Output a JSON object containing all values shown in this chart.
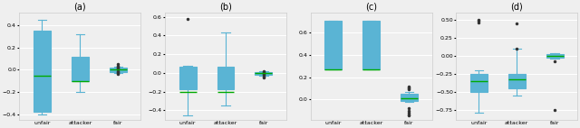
{
  "panels": [
    {
      "title": "(a)",
      "categories": [
        "unfair",
        "attacker",
        "fair"
      ],
      "boxes": [
        {
          "q1": -0.38,
          "median": -0.05,
          "q3": 0.35,
          "whislo": -0.4,
          "whishi": 0.45,
          "fliers": []
        },
        {
          "q1": -0.1,
          "median": -0.1,
          "q3": 0.12,
          "whislo": -0.2,
          "whishi": 0.32,
          "fliers": []
        },
        {
          "q1": -0.02,
          "median": 0.0,
          "q3": 0.02,
          "whislo": -0.03,
          "whishi": 0.03,
          "fliers": [
            -0.01,
            0.0,
            0.01,
            0.02,
            -0.02,
            0.03,
            -0.03,
            0.04,
            0.05,
            -0.04
          ]
        }
      ],
      "ylim": [
        -0.45,
        0.52
      ],
      "yticks": [
        -0.4,
        -0.2,
        0.0,
        0.2,
        0.4
      ]
    },
    {
      "title": "(b)",
      "categories": [
        "unfair",
        "attacker",
        "fair"
      ],
      "boxes": [
        {
          "q1": -0.17,
          "median": -0.2,
          "q3": 0.07,
          "whislo": -0.45,
          "whishi": 0.08,
          "fliers": [
            0.58
          ]
        },
        {
          "q1": -0.17,
          "median": -0.2,
          "q3": 0.07,
          "whislo": -0.35,
          "whishi": 0.43,
          "fliers": []
        },
        {
          "q1": -0.02,
          "median": 0.0,
          "q3": 0.01,
          "whislo": -0.03,
          "whishi": 0.02,
          "fliers": [
            -0.05,
            -0.04,
            -0.02,
            0.01,
            0.02,
            -0.01,
            0.0
          ]
        }
      ],
      "ylim": [
        -0.5,
        0.65
      ],
      "yticks": [
        -0.4,
        -0.2,
        0.0,
        0.2,
        0.4,
        0.6
      ]
    },
    {
      "title": "(c)",
      "categories": [
        "unfair",
        "attacker",
        "fair"
      ],
      "boxes": [
        {
          "q1": 0.27,
          "median": 0.27,
          "q3": 0.7,
          "whislo": 0.27,
          "whishi": 0.7,
          "fliers": []
        },
        {
          "q1": 0.27,
          "median": 0.27,
          "q3": 0.7,
          "whislo": 0.27,
          "whishi": 0.7,
          "fliers": []
        },
        {
          "q1": -0.01,
          "median": 0.01,
          "q3": 0.05,
          "whislo": -0.02,
          "whishi": 0.07,
          "fliers": [
            -0.08,
            -0.1,
            -0.12,
            -0.13,
            0.1,
            0.11,
            0.12,
            0.09,
            -0.14
          ]
        }
      ],
      "ylim": [
        -0.18,
        0.78
      ],
      "yticks": [
        0.0,
        0.2,
        0.4,
        0.6
      ]
    },
    {
      "title": "(d)",
      "categories": [
        "unfair",
        "attacker",
        "fair"
      ],
      "boxes": [
        {
          "q1": -0.5,
          "median": -0.35,
          "q3": -0.25,
          "whislo": -0.78,
          "whishi": -0.2,
          "fliers": [
            0.5,
            0.48,
            0.46
          ]
        },
        {
          "q1": -0.45,
          "median": -0.32,
          "q3": -0.25,
          "whislo": -0.55,
          "whishi": 0.1,
          "fliers": [
            0.45,
            0.1
          ]
        },
        {
          "q1": -0.02,
          "median": 0.0,
          "q3": 0.02,
          "whislo": -0.04,
          "whishi": 0.03,
          "fliers": [
            -0.75,
            -0.08
          ]
        }
      ],
      "ylim": [
        -0.88,
        0.6
      ],
      "yticks": [
        -0.75,
        -0.5,
        -0.25,
        0.0,
        0.25,
        0.5
      ]
    }
  ],
  "box_facecolor": "#add8e6",
  "box_edgecolor": "#5ab4d4",
  "median_color": "#00aa00",
  "whisker_color": "#5ab4d4",
  "cap_color": "#5ab4d4",
  "flier_color": "#333333",
  "bg_color": "#efefef",
  "grid_color": "#ffffff",
  "figsize": [
    6.4,
    1.42
  ],
  "dpi": 100
}
